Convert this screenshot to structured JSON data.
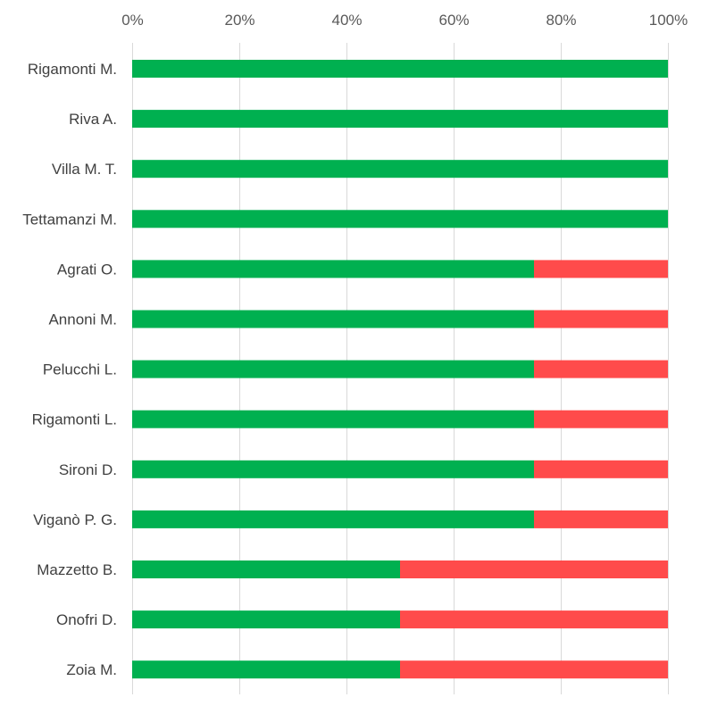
{
  "chart_data": {
    "type": "bar",
    "orientation": "horizontal",
    "stacked": true,
    "percent_stacked": true,
    "axis_position": "top",
    "grid": true,
    "legend": "none",
    "xlim": [
      0,
      100
    ],
    "x_ticks": [
      "0%",
      "20%",
      "40%",
      "60%",
      "80%",
      "100%"
    ],
    "categories": [
      "Rigamonti M.",
      "Riva A.",
      "Villa M. T.",
      "Tettamanzi M.",
      "Agrati O.",
      "Annoni M.",
      "Pelucchi L.",
      "Rigamonti L.",
      "Sironi D.",
      "Viganò P. G.",
      "Mazzetto B.",
      "Onofri D.",
      "Zoia M."
    ],
    "series": [
      {
        "color": "#00b050",
        "values": [
          100,
          100,
          100,
          100,
          75,
          75,
          75,
          75,
          75,
          75,
          50,
          50,
          50
        ]
      },
      {
        "color": "#ff4b4b",
        "values": [
          0,
          0,
          0,
          0,
          25,
          25,
          25,
          25,
          25,
          25,
          50,
          50,
          50
        ]
      }
    ]
  }
}
